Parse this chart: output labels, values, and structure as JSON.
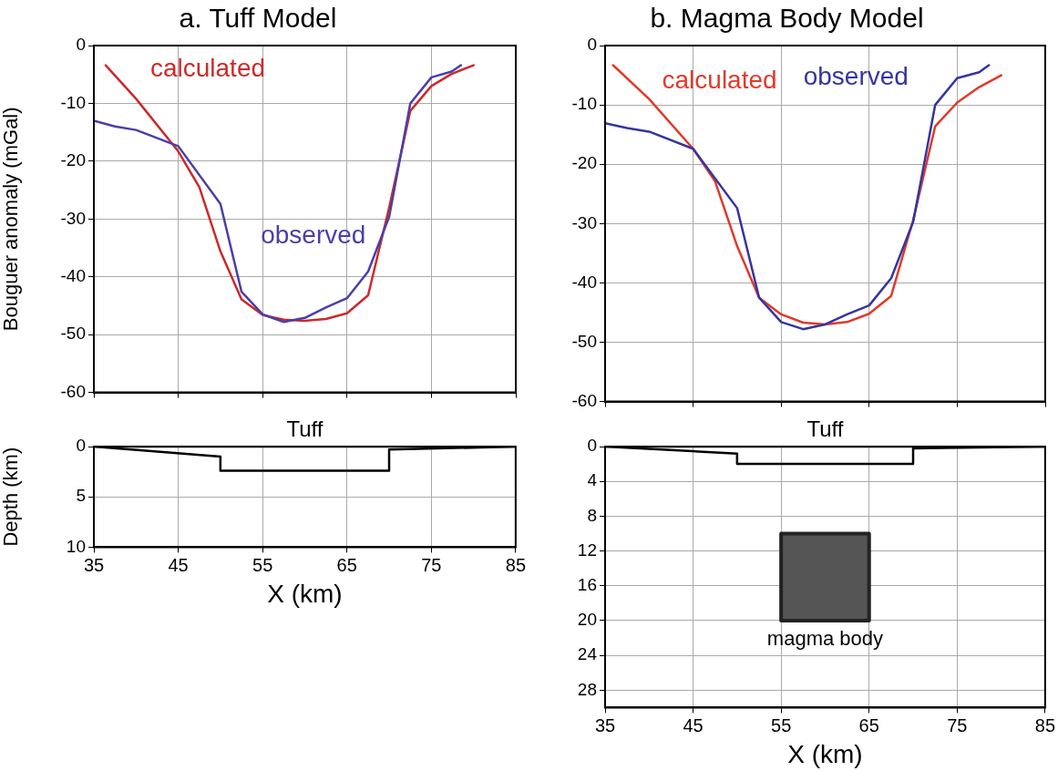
{
  "chart_data": [
    {
      "type": "line",
      "title": "a. Tuff Model",
      "ylabel": "Bouguer anomaly (mGal)",
      "xlim": [
        35,
        85
      ],
      "xticks": [
        35,
        45,
        55,
        65,
        75,
        85
      ],
      "ylim": [
        -60,
        0
      ],
      "yticks": [
        -60,
        -50,
        -40,
        -30,
        -20,
        -10,
        0
      ],
      "tick_labels": "y",
      "grid": true,
      "legend": false,
      "series": [
        {
          "name": "observed",
          "color": "#4b3fa8",
          "x": [
            35,
            37.5,
            40,
            45,
            50,
            52.5,
            55,
            57.5,
            60,
            62.5,
            65,
            67.5,
            70,
            72.5,
            75,
            77.4,
            78.5
          ],
          "values": [
            -13.0,
            -14.0,
            -14.6,
            -17.4,
            -27.4,
            -42.6,
            -46.5,
            -47.8,
            -47.1,
            -45.3,
            -43.7,
            -39.1,
            -29.6,
            -10.0,
            -5.5,
            -4.5,
            -3.4
          ]
        },
        {
          "name": "calculated",
          "color": "#cc2a2a",
          "x": [
            36.4,
            40,
            45,
            47.5,
            50,
            52.5,
            55,
            57.5,
            60,
            62.5,
            65,
            67.5,
            70,
            72.5,
            75,
            77.4,
            80
          ],
          "values": [
            -3.4,
            -9.2,
            -18.3,
            -24.5,
            -35.6,
            -43.9,
            -46.6,
            -47.4,
            -47.6,
            -47.3,
            -46.3,
            -43.2,
            -28.0,
            -11.3,
            -7.0,
            -4.9,
            -3.4
          ]
        }
      ]
    },
    {
      "type": "line",
      "title": "b. Magma Body Model",
      "xlim": [
        35,
        85
      ],
      "xticks": [
        35,
        45,
        55,
        65,
        75,
        85
      ],
      "ylim": [
        -60,
        0
      ],
      "yticks": [
        -60,
        -50,
        -40,
        -30,
        -20,
        -10,
        0
      ],
      "tick_labels": "y",
      "grid": true,
      "legend": false,
      "series": [
        {
          "name": "observed",
          "color": "#3535a0",
          "x": [
            35,
            37.5,
            40,
            45,
            50,
            52.5,
            55,
            57.5,
            60,
            62.5,
            65,
            67.5,
            70,
            72.5,
            75,
            77.5,
            78.6
          ],
          "values": [
            -13.1,
            -13.9,
            -14.5,
            -17.4,
            -27.4,
            -42.5,
            -46.6,
            -47.8,
            -47.0,
            -45.3,
            -43.8,
            -39.2,
            -29.7,
            -10.0,
            -5.5,
            -4.5,
            -3.3
          ]
        },
        {
          "name": "calculated",
          "color": "#e03a2a",
          "x": [
            35.9,
            40,
            45,
            47.5,
            50,
            52.5,
            55,
            57.5,
            60,
            62.5,
            65,
            67.5,
            70,
            72.5,
            75,
            77.5,
            80
          ],
          "values": [
            -3.3,
            -9.0,
            -17.4,
            -22.9,
            -33.8,
            -42.5,
            -45.3,
            -46.7,
            -47.0,
            -46.6,
            -45.2,
            -42.2,
            -29.4,
            -13.6,
            -9.6,
            -7.0,
            -5.0
          ]
        }
      ]
    },
    {
      "type": "line",
      "xlabel": "X (km)",
      "ylabel": "Depth (km)",
      "xlim": [
        35,
        85
      ],
      "xticks": [
        35,
        45,
        55,
        65,
        75,
        85
      ],
      "ylim": [
        10,
        0
      ],
      "yticks": [
        0,
        5,
        10
      ],
      "grid": true,
      "legend": false,
      "annotations": [
        "Tuff"
      ],
      "series": [
        {
          "color": "#000000",
          "x": [
            35,
            85
          ],
          "values": [
            0,
            0
          ]
        },
        {
          "color": "#000000",
          "x": [
            35,
            50,
            50,
            70,
            70,
            85
          ],
          "values": [
            0,
            1.0,
            2.4,
            2.4,
            0.3,
            0
          ]
        }
      ]
    },
    {
      "type": "line",
      "xlabel": "X (km)",
      "xlim": [
        35,
        85
      ],
      "xticks": [
        35,
        45,
        55,
        65,
        75,
        85
      ],
      "ylim": [
        30,
        0
      ],
      "yticks": [
        0,
        4,
        8,
        12,
        16,
        20,
        24,
        28
      ],
      "grid": true,
      "legend": false,
      "annotations": [
        "Tuff",
        "magma body"
      ],
      "series": [
        {
          "color": "#000000",
          "x": [
            35,
            85
          ],
          "values": [
            0,
            0
          ]
        },
        {
          "color": "#000000",
          "x": [
            35,
            50,
            50,
            70,
            70,
            85
          ],
          "values": [
            0,
            0.8,
            2.0,
            2.0,
            0.2,
            0
          ]
        },
        {
          "type": "area",
          "color": "#555555",
          "x": [
            55,
            65,
            65,
            55,
            55
          ],
          "values": [
            10,
            10,
            20,
            20,
            10
          ]
        }
      ]
    }
  ]
}
